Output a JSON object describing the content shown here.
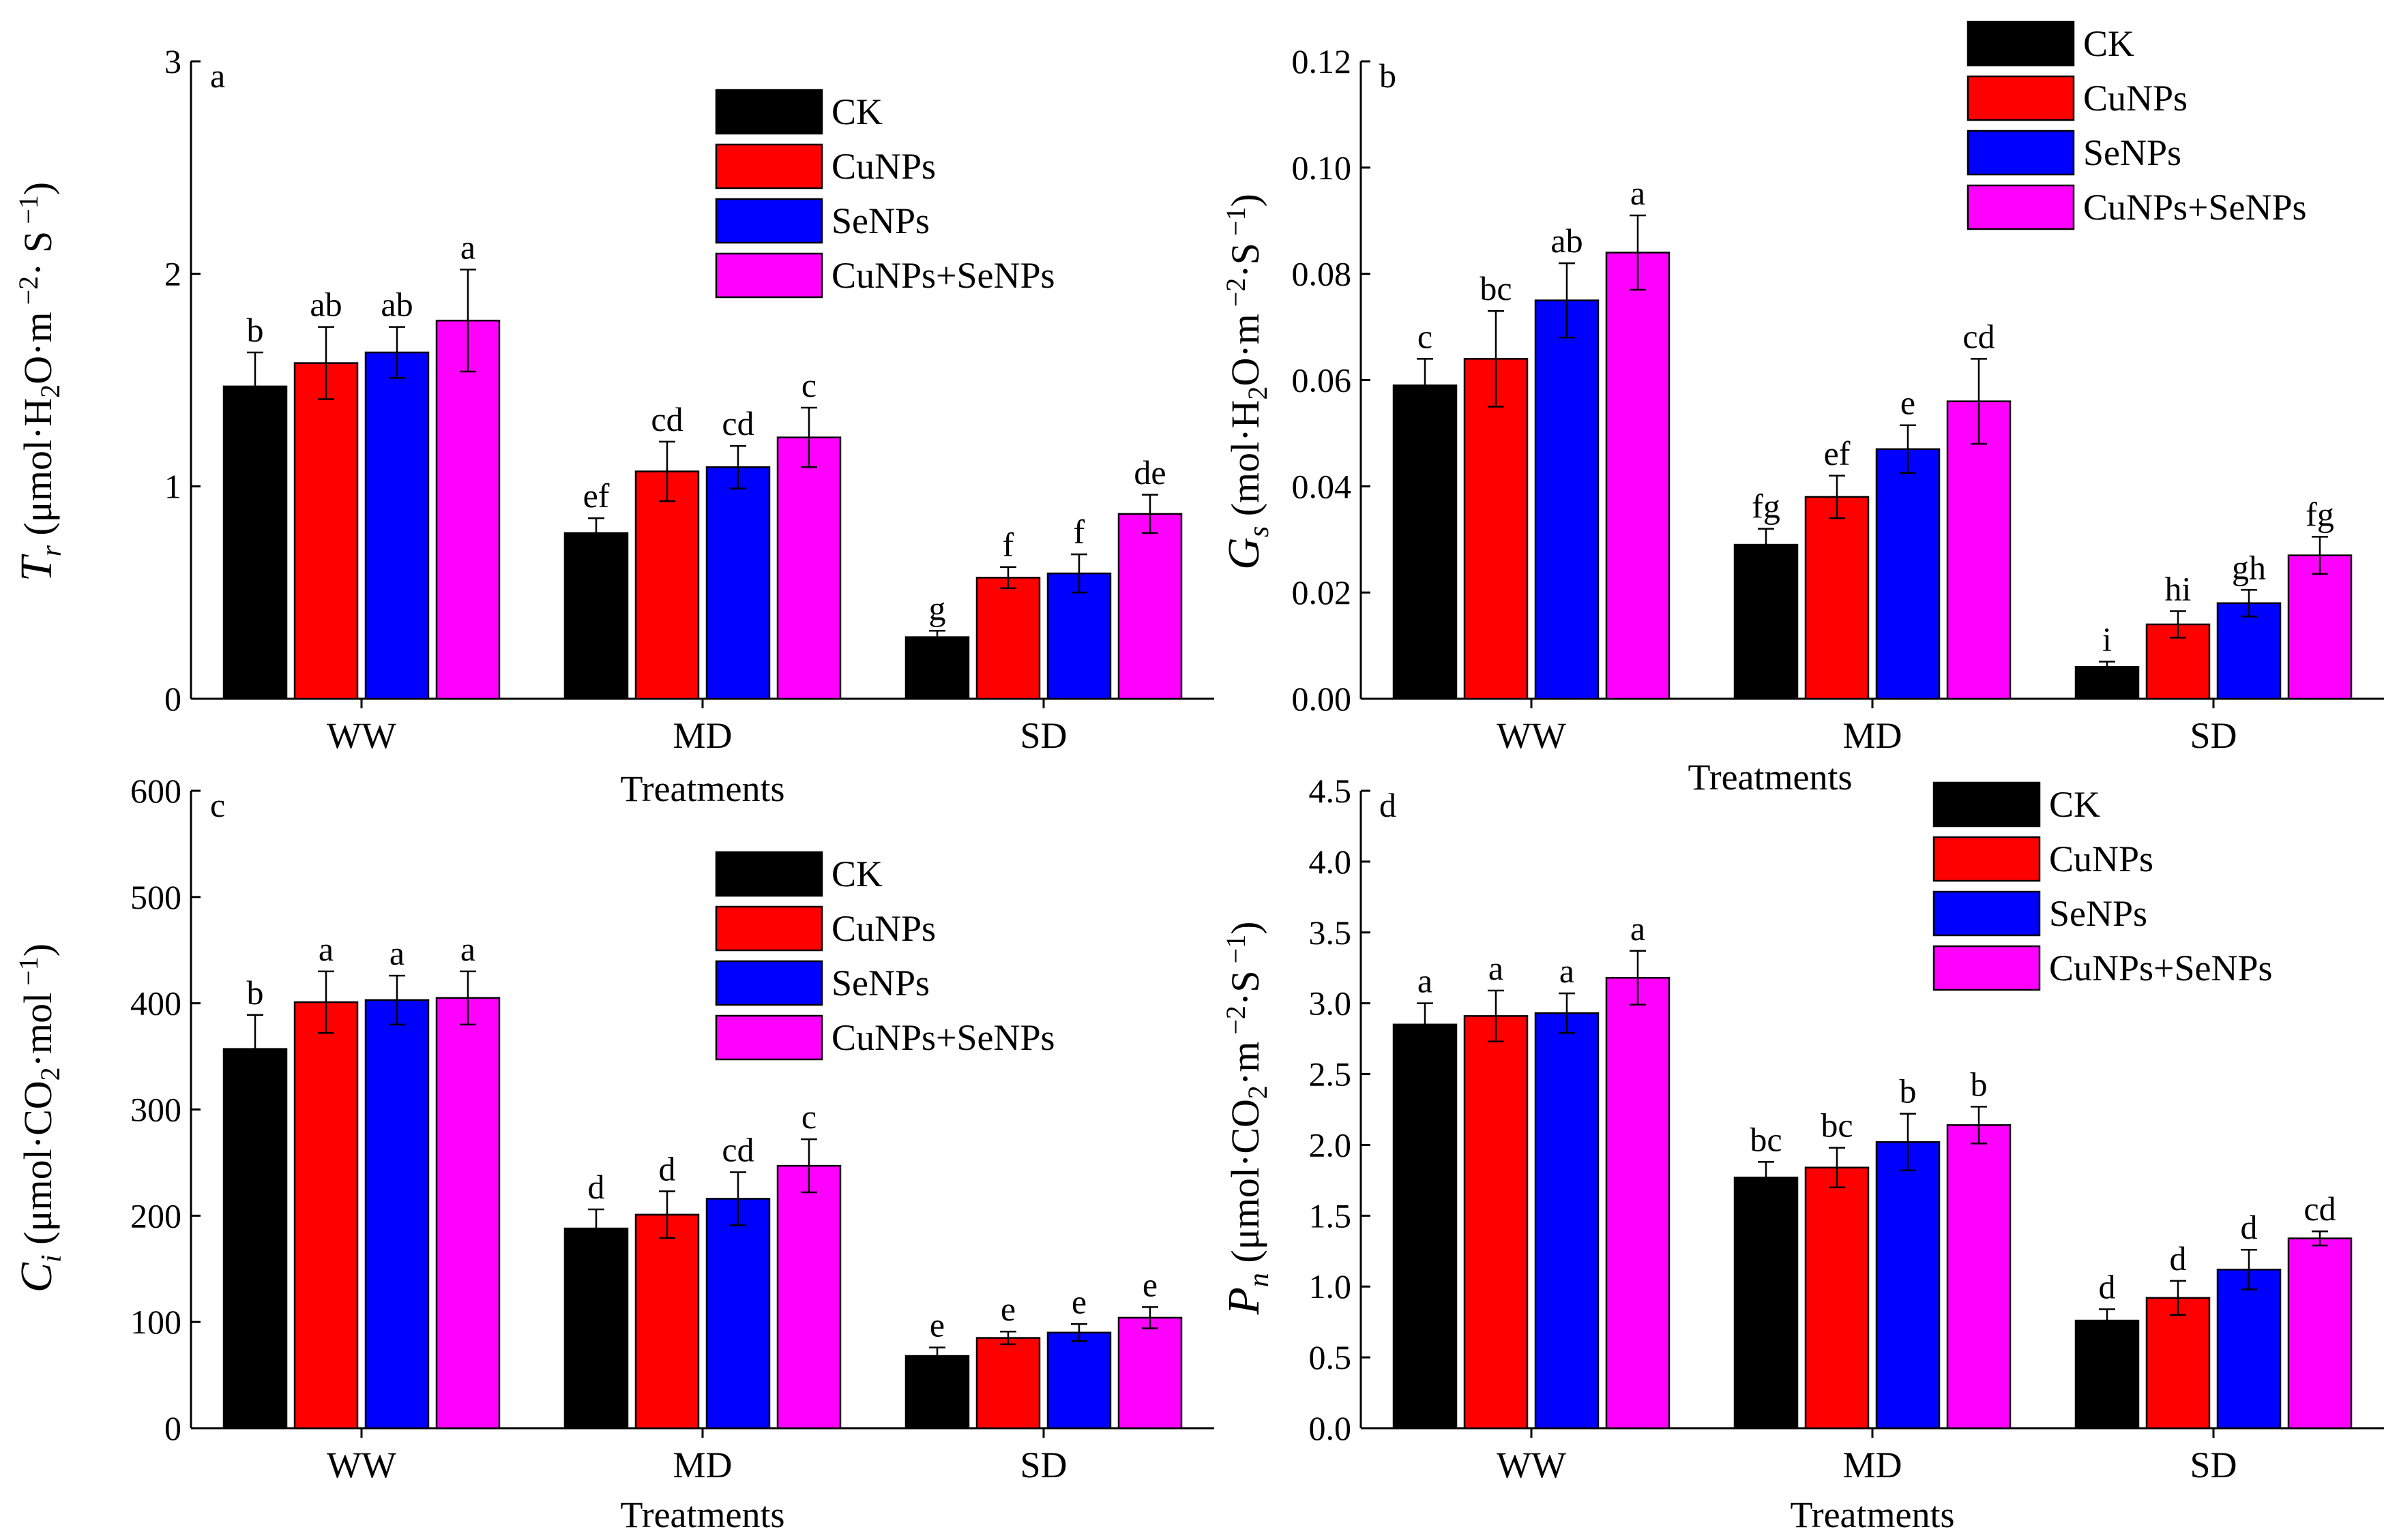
{
  "figure": {
    "legend_labels": [
      "CK",
      "CuNPs",
      "SeNPs",
      "CuNPs+SeNPs"
    ],
    "colors": [
      "#000000",
      "#ff0000",
      "#0000ff",
      "#ff00ff"
    ]
  },
  "chart_data": [
    {
      "type": "bar",
      "panel": "a",
      "title": "",
      "categories": [
        "WW",
        "MD",
        "SD"
      ],
      "xlabel": "Treatments",
      "ylabel_var": "T",
      "ylabel_sub": "r",
      "ylabel_unit_open": " (μmol·H",
      "ylabel_unit_mid1": "2",
      "ylabel_unit_mid2": "O·m",
      "ylabel_unit_mid3": " −2",
      "ylabel_unit_end": "· S",
      "ylabel_unit_sup2": " −1",
      "ylabel_unit_close": ")",
      "ylim": [
        0,
        3
      ],
      "yticks": [
        "0",
        "1",
        "2",
        "3"
      ],
      "ytick_values": [
        0,
        1,
        2,
        3
      ],
      "series": [
        {
          "name": "CK",
          "values": [
            1.47,
            0.78,
            0.29
          ],
          "errors": [
            0.16,
            0.07,
            0.03
          ],
          "letters": [
            "b",
            "ef",
            "g"
          ]
        },
        {
          "name": "CuNPs",
          "values": [
            1.58,
            1.07,
            0.57
          ],
          "errors": [
            0.17,
            0.14,
            0.05
          ],
          "letters": [
            "ab",
            "cd",
            "f"
          ]
        },
        {
          "name": "SeNPs",
          "values": [
            1.63,
            1.09,
            0.59
          ],
          "errors": [
            0.12,
            0.1,
            0.09
          ],
          "letters": [
            "ab",
            "cd",
            "f"
          ]
        },
        {
          "name": "CuNPs+SeNPs",
          "values": [
            1.78,
            1.23,
            0.87
          ],
          "errors": [
            0.24,
            0.14,
            0.09
          ],
          "letters": [
            "a",
            "c",
            "de"
          ]
        }
      ]
    },
    {
      "type": "bar",
      "panel": "b",
      "title": "",
      "categories": [
        "WW",
        "MD",
        "SD"
      ],
      "xlabel": "Treatments",
      "ylabel_var": "G",
      "ylabel_sub": "s",
      "ylabel_unit_open": " (mol·H",
      "ylabel_unit_mid1": "2",
      "ylabel_unit_mid2": "O·m",
      "ylabel_unit_mid3": " −2",
      "ylabel_unit_end": "·S",
      "ylabel_unit_sup2": " −1",
      "ylabel_unit_close": ")",
      "ylim": [
        0,
        0.12
      ],
      "yticks": [
        "0.00",
        "0.02",
        "0.04",
        "0.06",
        "0.08",
        "0.10",
        "0.12"
      ],
      "ytick_values": [
        0,
        0.02,
        0.04,
        0.06,
        0.08,
        0.1,
        0.12
      ],
      "series": [
        {
          "name": "CK",
          "values": [
            0.059,
            0.029,
            0.006
          ],
          "errors": [
            0.005,
            0.003,
            0.001
          ],
          "letters": [
            "c",
            "fg",
            "i"
          ]
        },
        {
          "name": "CuNPs",
          "values": [
            0.064,
            0.038,
            0.014
          ],
          "errors": [
            0.009,
            0.004,
            0.0025
          ],
          "letters": [
            "bc",
            "ef",
            "hi"
          ]
        },
        {
          "name": "SeNPs",
          "values": [
            0.075,
            0.047,
            0.018
          ],
          "errors": [
            0.007,
            0.0045,
            0.0025
          ],
          "letters": [
            "ab",
            "e",
            "gh"
          ]
        },
        {
          "name": "CuNPs+SeNPs",
          "values": [
            0.084,
            0.056,
            0.027
          ],
          "errors": [
            0.007,
            0.008,
            0.0035
          ],
          "letters": [
            "a",
            "cd",
            "fg"
          ]
        }
      ]
    },
    {
      "type": "bar",
      "panel": "c",
      "title": "",
      "categories": [
        "WW",
        "MD",
        "SD"
      ],
      "xlabel": "Treatments",
      "ylabel_var": "C",
      "ylabel_sub": "i",
      "ylabel_unit_open": " (μmol·CO",
      "ylabel_unit_mid1": "2",
      "ylabel_unit_mid2": "·mol",
      "ylabel_unit_mid3": " −1",
      "ylabel_unit_end": "",
      "ylabel_unit_sup2": "",
      "ylabel_unit_close": ")",
      "ylim": [
        0,
        600
      ],
      "yticks": [
        "0",
        "100",
        "200",
        "300",
        "400",
        "500",
        "600"
      ],
      "ytick_values": [
        0,
        100,
        200,
        300,
        400,
        500,
        600
      ],
      "series": [
        {
          "name": "CK",
          "values": [
            357,
            188,
            68
          ],
          "errors": [
            32,
            18,
            8
          ],
          "letters": [
            "b",
            "d",
            "e"
          ]
        },
        {
          "name": "CuNPs",
          "values": [
            401,
            201,
            85
          ],
          "errors": [
            29,
            22,
            6
          ],
          "letters": [
            "a",
            "d",
            "e"
          ]
        },
        {
          "name": "SeNPs",
          "values": [
            403,
            216,
            90
          ],
          "errors": [
            23,
            25,
            8
          ],
          "letters": [
            "a",
            "cd",
            "e"
          ]
        },
        {
          "name": "CuNPs+SeNPs",
          "values": [
            405,
            247,
            104
          ],
          "errors": [
            25,
            25,
            10
          ],
          "letters": [
            "a",
            "c",
            "e"
          ]
        }
      ]
    },
    {
      "type": "bar",
      "panel": "d",
      "title": "",
      "categories": [
        "WW",
        "MD",
        "SD"
      ],
      "xlabel": "Treatments",
      "ylabel_var": "P",
      "ylabel_sub": "n",
      "ylabel_unit_open": " (μmol·CO",
      "ylabel_unit_mid1": "2",
      "ylabel_unit_mid2": "·m",
      "ylabel_unit_mid3": " −2",
      "ylabel_unit_end": "·S",
      "ylabel_unit_sup2": " −1",
      "ylabel_unit_close": ")",
      "ylim": [
        0,
        4.5
      ],
      "yticks": [
        "0.0",
        "0.5",
        "1.0",
        "1.5",
        "2.0",
        "2.5",
        "3.0",
        "3.5",
        "4.0",
        "4.5"
      ],
      "ytick_values": [
        0,
        0.5,
        1.0,
        1.5,
        2.0,
        2.5,
        3.0,
        3.5,
        4.0,
        4.5
      ],
      "series": [
        {
          "name": "CK",
          "values": [
            2.85,
            1.77,
            0.76
          ],
          "errors": [
            0.15,
            0.11,
            0.08
          ],
          "letters": [
            "a",
            "bc",
            "d"
          ]
        },
        {
          "name": "CuNPs",
          "values": [
            2.91,
            1.84,
            0.92
          ],
          "errors": [
            0.18,
            0.14,
            0.12
          ],
          "letters": [
            "a",
            "bc",
            "d"
          ]
        },
        {
          "name": "SeNPs",
          "values": [
            2.93,
            2.02,
            1.12
          ],
          "errors": [
            0.14,
            0.2,
            0.14
          ],
          "letters": [
            "a",
            "b",
            "d"
          ]
        },
        {
          "name": "CuNPs+SeNPs",
          "values": [
            3.18,
            2.14,
            1.34
          ],
          "errors": [
            0.19,
            0.13,
            0.05
          ],
          "letters": [
            "a",
            "b",
            "cd"
          ]
        }
      ]
    }
  ]
}
